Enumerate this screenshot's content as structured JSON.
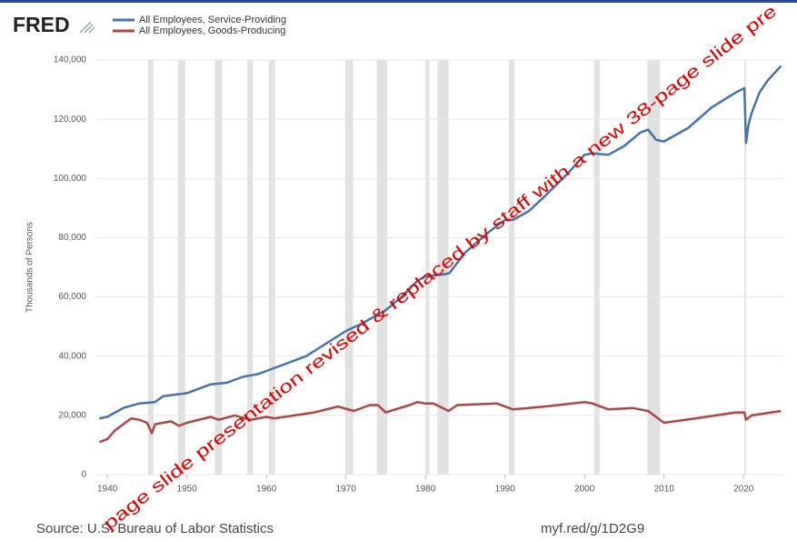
{
  "chart_data": {
    "type": "line",
    "brand": "FRED",
    "y_label": "Thousands of Persons",
    "source": "Source: U.S. Bureau of Labor Statistics",
    "link": "myf.red/g/1D2G9",
    "annotation": "page slide presentation revised & replaced by staff with a new 38-page slide pre",
    "xlim": [
      1938.5,
      2025
    ],
    "xticks": [
      1940,
      1950,
      1960,
      1970,
      1980,
      1990,
      2000,
      2010,
      2020
    ],
    "ylim": [
      0,
      140000
    ],
    "yticks": [
      0,
      {
        "value": 20000,
        "label": "20,000"
      },
      {
        "value": 40000,
        "label": "40,000"
      },
      {
        "value": 60000,
        "label": "60,000"
      },
      {
        "value": 80000,
        "label": "80,000"
      },
      {
        "value": 100000,
        "label": "100,000"
      },
      {
        "value": 120000,
        "label": "120,000"
      },
      {
        "value": 140000,
        "label": "140,000"
      }
    ],
    "grid": true,
    "recessions": [
      [
        1945.1,
        1945.8
      ],
      [
        1948.9,
        1949.8
      ],
      [
        1953.5,
        1954.4
      ],
      [
        1957.6,
        1958.3
      ],
      [
        1960.3,
        1961.1
      ],
      [
        1969.9,
        1970.9
      ],
      [
        1973.9,
        1975.2
      ],
      [
        1980.0,
        1980.5
      ],
      [
        1981.5,
        1982.9
      ],
      [
        1990.5,
        1991.2
      ],
      [
        2001.2,
        2001.9
      ],
      [
        2007.9,
        2009.5
      ],
      [
        2020.1,
        2020.3
      ]
    ],
    "series": [
      {
        "name": "All Employees, Service-Providing",
        "color": "#4572a7",
        "x": [
          1939,
          1940,
          1942,
          1944,
          1946,
          1947,
          1950,
          1953,
          1955,
          1957,
          1959,
          1960,
          1965,
          1970,
          1972,
          1975,
          1977,
          1979,
          1980,
          1982,
          1983,
          1985,
          1988,
          1990,
          1991,
          1993,
          1995,
          1998,
          2000,
          2001,
          2003,
          2005,
          2007,
          2008,
          2009,
          2010,
          2013,
          2016,
          2019,
          2020.1,
          2020.3,
          2020.6,
          2021,
          2022,
          2023,
          2024.7
        ],
        "values": [
          19000,
          19500,
          22500,
          24000,
          24500,
          26500,
          27500,
          30500,
          31000,
          33000,
          34000,
          35000,
          40000,
          48500,
          51000,
          55500,
          60000,
          65500,
          67000,
          67500,
          68000,
          75000,
          82000,
          86000,
          86000,
          89000,
          94000,
          102000,
          108000,
          108500,
          108000,
          111000,
          115500,
          116500,
          113000,
          112500,
          117000,
          124000,
          129000,
          130500,
          112000,
          118000,
          122000,
          129000,
          133000,
          138000
        ]
      },
      {
        "name": "All Employees, Goods-Producing",
        "color": "#aa4643",
        "x": [
          1939,
          1940,
          1941,
          1943,
          1944,
          1945,
          1945.6,
          1946,
          1948,
          1949,
          1950,
          1953,
          1954,
          1956,
          1958,
          1960,
          1961,
          1966,
          1969,
          1971,
          1973,
          1974,
          1975,
          1978,
          1979,
          1980,
          1981,
          1982.9,
          1984,
          1989,
          1991,
          1995,
          2000,
          2001,
          2003,
          2006,
          2008,
          2010,
          2014,
          2019,
          2020.1,
          2020.3,
          2021,
          2024.7
        ],
        "values": [
          11000,
          12000,
          15000,
          19000,
          18500,
          17500,
          14000,
          17000,
          18000,
          16500,
          17500,
          19500,
          18500,
          20000,
          18500,
          19500,
          19000,
          21000,
          23000,
          21500,
          23500,
          23500,
          21000,
          23500,
          24500,
          24000,
          24000,
          21500,
          23500,
          24000,
          22000,
          23000,
          24500,
          24000,
          22000,
          22500,
          21500,
          17500,
          19000,
          21000,
          21000,
          18500,
          20000,
          21500
        ]
      }
    ]
  }
}
